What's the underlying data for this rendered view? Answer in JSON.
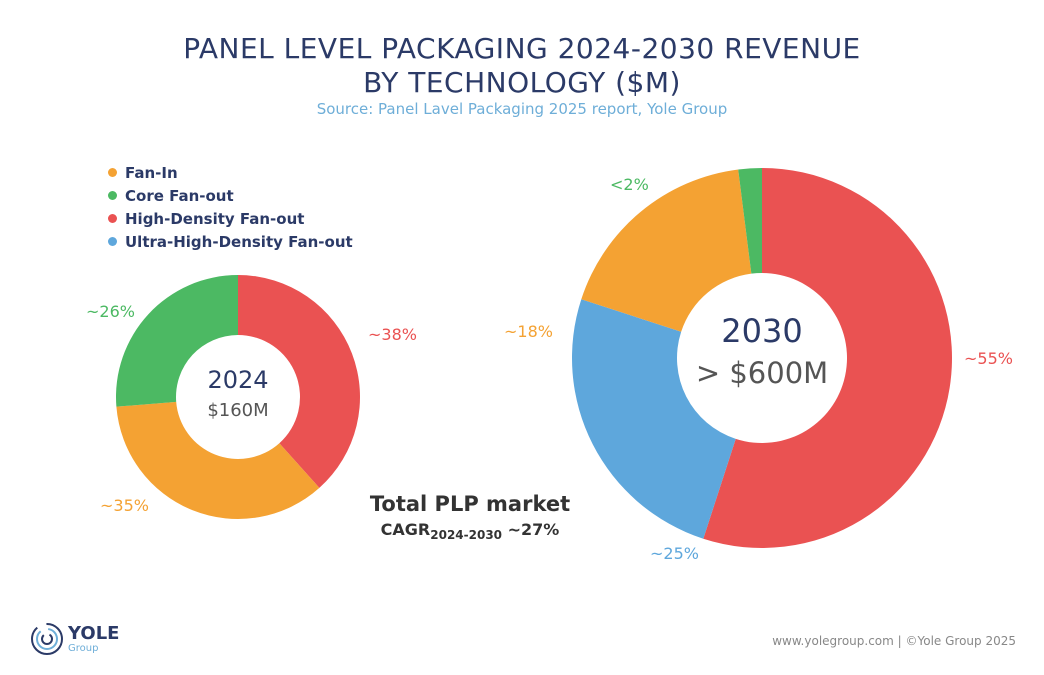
{
  "chart_data": [
    {
      "type": "pie",
      "subtype": "donut",
      "center_label": "2024",
      "center_value": "$160M",
      "categories": [
        "High-Density Fan-out",
        "Fan-In",
        "Core Fan-out"
      ],
      "values": [
        38,
        35,
        26
      ],
      "labels": [
        "~38%",
        "~35%",
        "~26%"
      ]
    },
    {
      "type": "pie",
      "subtype": "donut",
      "center_label": "2030",
      "center_value": "> $600M",
      "categories": [
        "High-Density Fan-out",
        "Ultra-High-Density Fan-out",
        "Fan-In",
        "Core Fan-out"
      ],
      "values": [
        55,
        25,
        18,
        2
      ],
      "labels": [
        "~55%",
        "~25%",
        "~18%",
        "<2%"
      ]
    }
  ],
  "title_line1": "PANEL LEVEL PACKAGING 2024-2030 REVENUE",
  "title_line2": "BY TECHNOLOGY ($M)",
  "source": "Source: Panel Lavel Packaging 2025 report, Yole Group",
  "legend": [
    {
      "name": "Fan-In",
      "color": "#f4a233"
    },
    {
      "name": "Core Fan-out",
      "color": "#4cb963"
    },
    {
      "name": "High-Density Fan-out",
      "color": "#ea5252"
    },
    {
      "name": "Ultra-High-Density Fan-out",
      "color": "#5ea7dc"
    }
  ],
  "total": {
    "line1": "Total PLP market",
    "cagr": "CAGR",
    "cagr_sub": "2024-2030",
    "cagr_value": "~27%"
  },
  "logo": {
    "name": "YOLE",
    "sub": "Group"
  },
  "footer": "www.yolegroup.com | ©Yole Group 2025"
}
